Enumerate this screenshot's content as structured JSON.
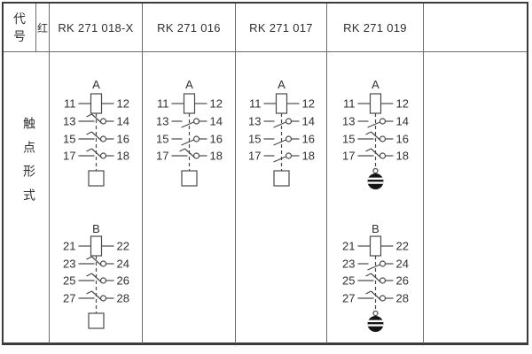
{
  "table": {
    "corner": {
      "code_chars": [
        "代",
        "号"
      ],
      "red_label": "红"
    },
    "side_label": "触点形式",
    "colors": {
      "line": "#4a4a4a",
      "text": "#303030",
      "grid": "#6b6b6b",
      "ball": "#141414",
      "stripe": "#ffffff"
    },
    "columns": [
      {
        "header": "RK 271 018-X",
        "groups": [
          {
            "label": "A",
            "end": "box",
            "rows": [
              {
                "l": "11",
                "r": "12",
                "t": "coil"
              },
              {
                "l": "13",
                "r": "14",
                "t": "break"
              },
              {
                "l": "15",
                "r": "16",
                "t": "break"
              },
              {
                "l": "17",
                "r": "18",
                "t": "break"
              }
            ]
          },
          {
            "label": "B",
            "end": "box",
            "rows": [
              {
                "l": "21",
                "r": "22",
                "t": "coil"
              },
              {
                "l": "23",
                "r": "24",
                "t": "break"
              },
              {
                "l": "25",
                "r": "26",
                "t": "break"
              },
              {
                "l": "27",
                "r": "28",
                "t": "break"
              }
            ]
          }
        ]
      },
      {
        "header": "RK 271 016",
        "groups": [
          {
            "label": "A",
            "end": "box",
            "rows": [
              {
                "l": "11",
                "r": "12",
                "t": "coil"
              },
              {
                "l": "13",
                "r": "14",
                "t": "make"
              },
              {
                "l": "15",
                "r": "16",
                "t": "make"
              },
              {
                "l": "17",
                "r": "18",
                "t": "break"
              }
            ]
          }
        ]
      },
      {
        "header": "RK 271 017",
        "groups": [
          {
            "label": "A",
            "end": "box",
            "rows": [
              {
                "l": "11",
                "r": "12",
                "t": "coil"
              },
              {
                "l": "13",
                "r": "14",
                "t": "make"
              },
              {
                "l": "15",
                "r": "16",
                "t": "make"
              },
              {
                "l": "17",
                "r": "18",
                "t": "make"
              }
            ]
          }
        ]
      },
      {
        "header": "RK 271 019",
        "groups": [
          {
            "label": "A",
            "end": "indicator",
            "rows": [
              {
                "l": "11",
                "r": "12",
                "t": "coil"
              },
              {
                "l": "13",
                "r": "14",
                "t": "make"
              },
              {
                "l": "15",
                "r": "16",
                "t": "break"
              },
              {
                "l": "17",
                "r": "18",
                "t": "break"
              }
            ]
          },
          {
            "label": "B",
            "end": "indicator",
            "rows": [
              {
                "l": "21",
                "r": "22",
                "t": "coil"
              },
              {
                "l": "23",
                "r": "24",
                "t": "make"
              },
              {
                "l": "25",
                "r": "26",
                "t": "break"
              },
              {
                "l": "27",
                "r": "28",
                "t": "break"
              }
            ]
          }
        ]
      },
      {
        "header": "",
        "groups": []
      }
    ]
  }
}
